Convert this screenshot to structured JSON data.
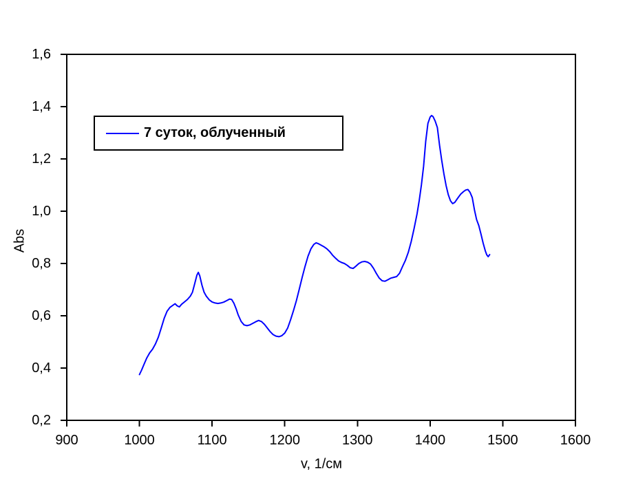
{
  "figure": {
    "background": "#ffffff",
    "axis_color": "#000000",
    "accent_color": "#0000ff"
  },
  "chart_data": {
    "type": "line",
    "title": "",
    "xlabel": "v, 1/см",
    "ylabel": "Abs",
    "xlim": [
      900,
      1600
    ],
    "ylim": [
      0.2,
      1.6
    ],
    "grid": false,
    "x_ticks": [
      900,
      1000,
      1100,
      1200,
      1300,
      1400,
      1500,
      1600
    ],
    "x_tick_labels": [
      "900",
      "1000",
      "1100",
      "1200",
      "1300",
      "1400",
      "1500",
      "1600"
    ],
    "y_ticks": [
      0.2,
      0.4,
      0.6,
      0.8,
      1.0,
      1.2,
      1.4,
      1.6
    ],
    "y_tick_labels": [
      "0,2",
      "0,4",
      "0,6",
      "0,8",
      "1,0",
      "1,2",
      "1,4",
      "1,6"
    ],
    "legend": {
      "position": "upper-left-inside",
      "entries": [
        {
          "label": "7 суток, облученный",
          "color": "#0000ff"
        }
      ]
    },
    "series": [
      {
        "name": "7 суток, облученный",
        "color": "#0000ff",
        "points": [
          [
            1000,
            0.375
          ],
          [
            1003,
            0.392
          ],
          [
            1006,
            0.412
          ],
          [
            1010,
            0.438
          ],
          [
            1014,
            0.458
          ],
          [
            1018,
            0.472
          ],
          [
            1022,
            0.492
          ],
          [
            1026,
            0.518
          ],
          [
            1030,
            0.553
          ],
          [
            1034,
            0.59
          ],
          [
            1038,
            0.617
          ],
          [
            1042,
            0.632
          ],
          [
            1046,
            0.64
          ],
          [
            1049,
            0.646
          ],
          [
            1052,
            0.638
          ],
          [
            1055,
            0.634
          ],
          [
            1058,
            0.644
          ],
          [
            1062,
            0.653
          ],
          [
            1066,
            0.662
          ],
          [
            1070,
            0.675
          ],
          [
            1073,
            0.69
          ],
          [
            1076,
            0.722
          ],
          [
            1079,
            0.755
          ],
          [
            1081,
            0.766
          ],
          [
            1083,
            0.753
          ],
          [
            1086,
            0.717
          ],
          [
            1089,
            0.69
          ],
          [
            1092,
            0.675
          ],
          [
            1096,
            0.661
          ],
          [
            1100,
            0.653
          ],
          [
            1104,
            0.649
          ],
          [
            1108,
            0.647
          ],
          [
            1112,
            0.649
          ],
          [
            1116,
            0.652
          ],
          [
            1120,
            0.658
          ],
          [
            1124,
            0.664
          ],
          [
            1127,
            0.662
          ],
          [
            1130,
            0.648
          ],
          [
            1133,
            0.627
          ],
          [
            1136,
            0.603
          ],
          [
            1140,
            0.578
          ],
          [
            1144,
            0.565
          ],
          [
            1148,
            0.562
          ],
          [
            1152,
            0.565
          ],
          [
            1156,
            0.571
          ],
          [
            1160,
            0.577
          ],
          [
            1164,
            0.582
          ],
          [
            1168,
            0.578
          ],
          [
            1172,
            0.567
          ],
          [
            1176,
            0.553
          ],
          [
            1180,
            0.539
          ],
          [
            1184,
            0.528
          ],
          [
            1188,
            0.522
          ],
          [
            1192,
            0.52
          ],
          [
            1196,
            0.524
          ],
          [
            1200,
            0.534
          ],
          [
            1204,
            0.553
          ],
          [
            1208,
            0.585
          ],
          [
            1212,
            0.62
          ],
          [
            1216,
            0.658
          ],
          [
            1220,
            0.702
          ],
          [
            1224,
            0.748
          ],
          [
            1228,
            0.79
          ],
          [
            1232,
            0.828
          ],
          [
            1236,
            0.856
          ],
          [
            1240,
            0.873
          ],
          [
            1243,
            0.879
          ],
          [
            1246,
            0.876
          ],
          [
            1250,
            0.87
          ],
          [
            1254,
            0.864
          ],
          [
            1258,
            0.856
          ],
          [
            1262,
            0.845
          ],
          [
            1266,
            0.831
          ],
          [
            1270,
            0.82
          ],
          [
            1274,
            0.81
          ],
          [
            1278,
            0.804
          ],
          [
            1282,
            0.8
          ],
          [
            1286,
            0.793
          ],
          [
            1290,
            0.784
          ],
          [
            1294,
            0.781
          ],
          [
            1298,
            0.79
          ],
          [
            1302,
            0.8
          ],
          [
            1306,
            0.806
          ],
          [
            1310,
            0.808
          ],
          [
            1314,
            0.805
          ],
          [
            1318,
            0.798
          ],
          [
            1322,
            0.782
          ],
          [
            1326,
            0.762
          ],
          [
            1330,
            0.744
          ],
          [
            1334,
            0.734
          ],
          [
            1338,
            0.732
          ],
          [
            1342,
            0.738
          ],
          [
            1346,
            0.744
          ],
          [
            1350,
            0.747
          ],
          [
            1354,
            0.75
          ],
          [
            1358,
            0.763
          ],
          [
            1362,
            0.788
          ],
          [
            1366,
            0.812
          ],
          [
            1370,
            0.843
          ],
          [
            1374,
            0.884
          ],
          [
            1378,
            0.934
          ],
          [
            1382,
            0.99
          ],
          [
            1385,
            1.04
          ],
          [
            1388,
            1.1
          ],
          [
            1391,
            1.172
          ],
          [
            1394,
            1.268
          ],
          [
            1397,
            1.336
          ],
          [
            1400,
            1.36
          ],
          [
            1402,
            1.366
          ],
          [
            1404,
            1.362
          ],
          [
            1407,
            1.345
          ],
          [
            1410,
            1.32
          ],
          [
            1413,
            1.252
          ],
          [
            1416,
            1.195
          ],
          [
            1419,
            1.143
          ],
          [
            1422,
            1.098
          ],
          [
            1425,
            1.063
          ],
          [
            1428,
            1.04
          ],
          [
            1431,
            1.029
          ],
          [
            1434,
            1.034
          ],
          [
            1438,
            1.05
          ],
          [
            1442,
            1.065
          ],
          [
            1446,
            1.075
          ],
          [
            1449,
            1.081
          ],
          [
            1452,
            1.083
          ],
          [
            1455,
            1.072
          ],
          [
            1458,
            1.052
          ],
          [
            1461,
            1.005
          ],
          [
            1464,
            0.968
          ],
          [
            1467,
            0.945
          ],
          [
            1470,
            0.912
          ],
          [
            1473,
            0.878
          ],
          [
            1476,
            0.848
          ],
          [
            1478,
            0.833
          ],
          [
            1480,
            0.826
          ],
          [
            1482,
            0.834
          ]
        ]
      }
    ]
  }
}
